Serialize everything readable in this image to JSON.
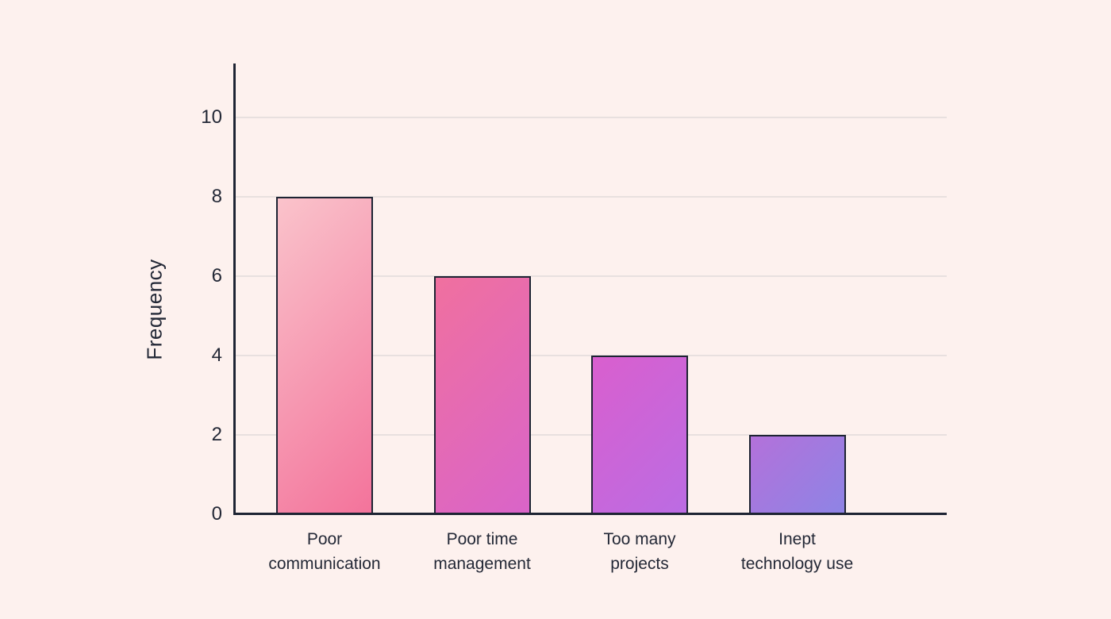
{
  "chart_data": {
    "type": "bar",
    "title": "",
    "xlabel": "",
    "ylabel": "Frequency",
    "categories": [
      "Poor\ncommunication",
      "Poor time\nmanagement",
      "Too many\nprojects",
      "Inept\ntechnology use"
    ],
    "values": [
      8,
      6,
      4,
      2
    ],
    "yticks": [
      0,
      2,
      4,
      6,
      8,
      10
    ],
    "ylim": [
      0,
      11.4
    ],
    "grid": true,
    "legend": false,
    "bar_gradients": [
      {
        "from": "#fac3cb",
        "to": "#f3739b"
      },
      {
        "from": "#f0709f",
        "to": "#d964c9"
      },
      {
        "from": "#d95fce",
        "to": "#bb6ce3"
      },
      {
        "from": "#b371da",
        "to": "#8e84e5"
      }
    ],
    "colors": {
      "background": "#fdf1ee",
      "axis": "#1e2433",
      "gridline": "#e8e0df",
      "text": "#232836",
      "bar_border": "#1e2433"
    }
  }
}
